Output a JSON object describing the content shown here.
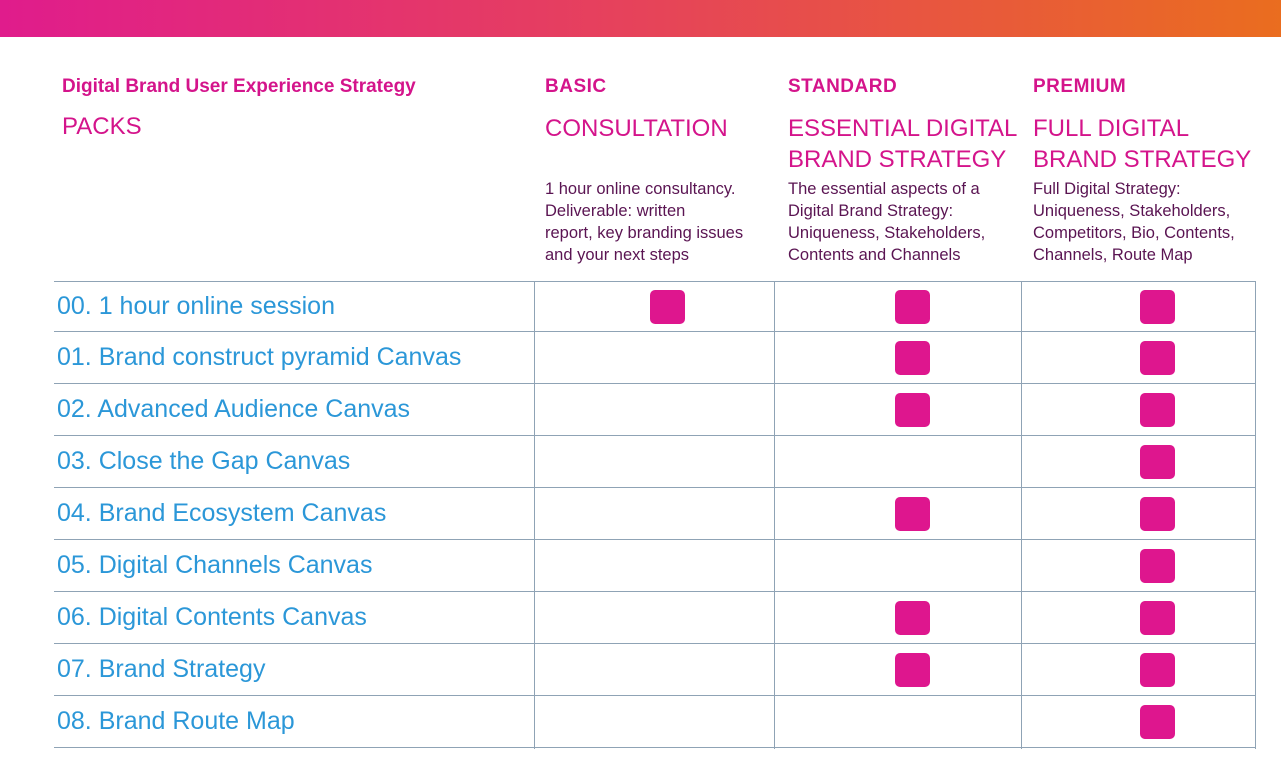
{
  "header": {
    "title": "Digital Brand User Experience Strategy",
    "subtitle": "PACKS"
  },
  "tiers": [
    {
      "name": "BASIC",
      "title": "CONSULTATION",
      "description_lines": [
        "1 hour online consultancy.",
        "Deliverable: written",
        "report, key branding issues",
        "and your next steps"
      ]
    },
    {
      "name": "STANDARD",
      "title": "ESSENTIAL DIGITAL BRAND STRATEGY",
      "description_lines": [
        "The essential aspects of a",
        "Digital Brand Strategy:",
        "Uniqueness, Stakeholders,",
        "Contents and Channels"
      ]
    },
    {
      "name": "PREMIUM",
      "title": "FULL DIGITAL BRAND STRATEGY",
      "description_lines": [
        "Full Digital Strategy:",
        "Uniqueness, Stakeholders,",
        "Competitors, Bio, Contents,",
        "Channels, Route Map"
      ]
    }
  ],
  "rows": [
    {
      "label": "00. 1 hour online session",
      "included": [
        true,
        true,
        true
      ]
    },
    {
      "label": "01. Brand construct pyramid Canvas",
      "included": [
        false,
        true,
        true
      ]
    },
    {
      "label": "02. Advanced Audience Canvas",
      "included": [
        false,
        true,
        true
      ]
    },
    {
      "label": "03. Close the Gap Canvas",
      "included": [
        false,
        false,
        true
      ]
    },
    {
      "label": "04. Brand Ecosystem Canvas",
      "included": [
        false,
        true,
        true
      ]
    },
    {
      "label": "05. Digital Channels Canvas",
      "included": [
        false,
        false,
        true
      ]
    },
    {
      "label": "06. Digital Contents Canvas",
      "included": [
        false,
        true,
        true
      ]
    },
    {
      "label": "07. Brand Strategy",
      "included": [
        false,
        true,
        true
      ]
    },
    {
      "label": "08. Brand Route Map",
      "included": [
        false,
        false,
        true
      ]
    }
  ],
  "colors": {
    "accent": "#de168e",
    "row_text": "#2b97d8",
    "description_text": "#5a1452",
    "gradient_start": "#e01c8c",
    "gradient_end": "#ea6d1f"
  }
}
